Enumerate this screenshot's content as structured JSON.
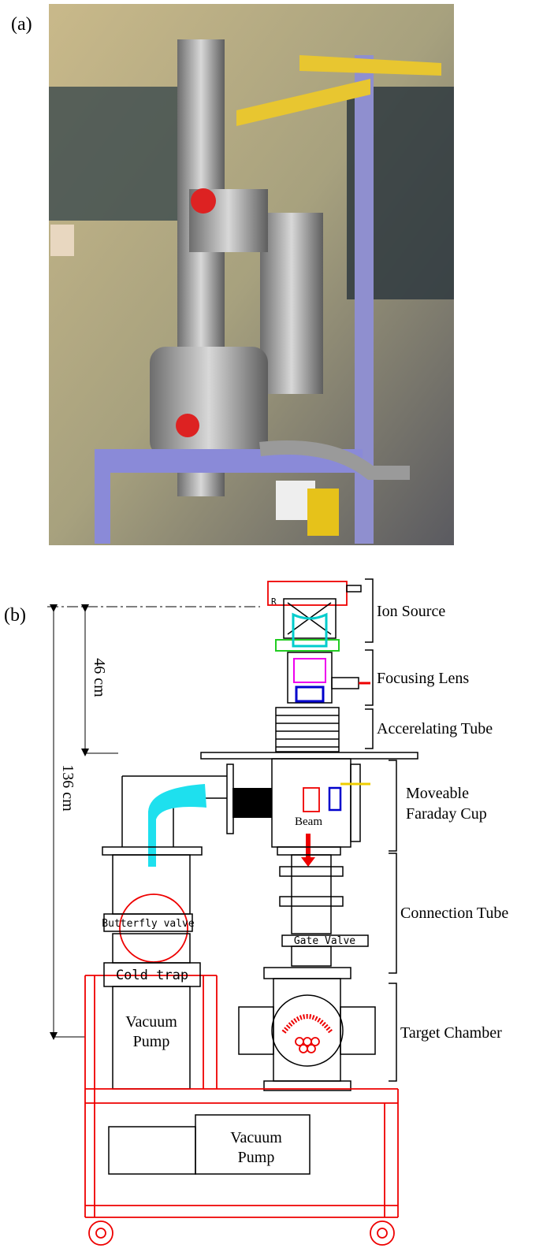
{
  "panels": {
    "a": "(a)",
    "b": "(b)"
  },
  "diagram": {
    "sections": [
      "Ion Source",
      "Focusing Lens",
      "Accerelating Tube",
      [
        "Moveable",
        "Faraday Cup"
      ],
      "Connection Tube",
      "Target Chamber"
    ],
    "dimensions": [
      "46 cm",
      "136 cm"
    ],
    "parts": {
      "beam": "Beam",
      "resistor": "R",
      "butterfly_valve": "Butterfly valve",
      "gate_valve": "Gate Valve",
      "cold_trap": "Cold trap",
      "vacuum_pump_1": [
        "Vacuum",
        "Pump"
      ],
      "vacuum_pump_2": [
        "Vacuum",
        "Pump"
      ]
    }
  }
}
